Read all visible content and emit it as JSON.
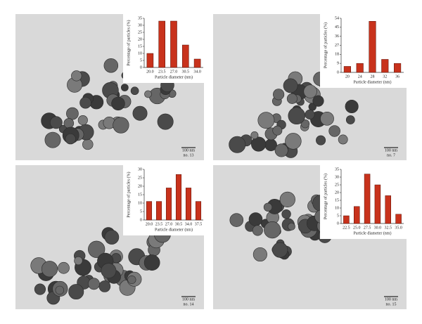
{
  "chart_data": [
    {
      "type": "bar",
      "categories": [
        "20.0",
        "23.5",
        "27.0",
        "30.5",
        "34.0"
      ],
      "values": [
        10,
        33,
        33,
        16,
        6
      ],
      "color": "#c8321c",
      "ylim": [
        0,
        35
      ],
      "yticks": [
        0,
        5,
        10,
        15,
        20,
        25,
        30,
        35
      ],
      "y_label": "Percentage of particles (%)",
      "x_label": "Particle diameter (nm)",
      "scale_bar": "100 nm",
      "sample": "no. 13"
    },
    {
      "type": "bar",
      "categories": [
        "20",
        "24",
        "28",
        "32",
        "36"
      ],
      "values": [
        6,
        9,
        51,
        13,
        9
      ],
      "color": "#c8321c",
      "ylim": [
        0,
        54
      ],
      "yticks": [
        0,
        9,
        18,
        27,
        36,
        45,
        54
      ],
      "y_label": "Percentage of particles (%)",
      "x_label": "Particle diameter (nm)",
      "scale_bar": "100 nm",
      "sample": "no. 7"
    },
    {
      "type": "bar",
      "categories": [
        "20.0",
        "23.5",
        "27.0",
        "30.5",
        "34.0",
        "37.5"
      ],
      "values": [
        11,
        11,
        19,
        27,
        19,
        11
      ],
      "color": "#c8321c",
      "ylim": [
        0,
        30
      ],
      "yticks": [
        0,
        5,
        10,
        15,
        20,
        25,
        30
      ],
      "y_label": "Percentage of particles (%)",
      "x_label": "Particle diameter (nm)",
      "scale_bar": "100 nm",
      "sample": "no. 14"
    },
    {
      "type": "bar",
      "categories": [
        "22.5",
        "25.0",
        "27.5",
        "30.0",
        "32.5",
        "35.0"
      ],
      "values": [
        5,
        11,
        32,
        25,
        18,
        6
      ],
      "color": "#c8321c",
      "ylim": [
        0,
        35
      ],
      "yticks": [
        0,
        5,
        10,
        15,
        20,
        25,
        30,
        35
      ],
      "y_label": "Percentage of particles (%)",
      "x_label": "Particle diameter (nm)",
      "scale_bar": "100 nm",
      "sample": "no. 15"
    }
  ]
}
